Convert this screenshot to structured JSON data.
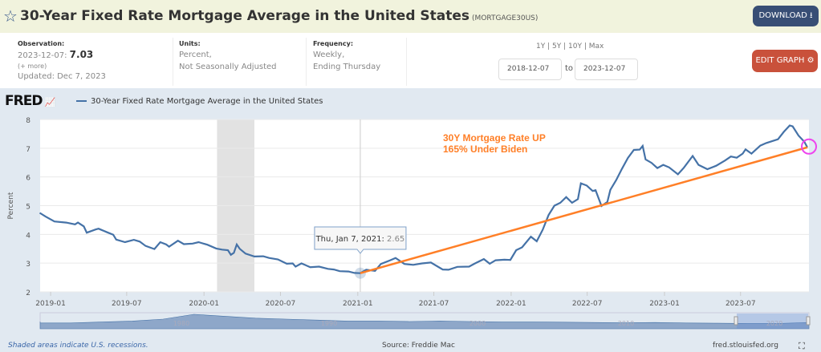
{
  "header": {
    "title": "30-Year Fixed Rate Mortgage Average in the United States",
    "series_id": "(MORTGAGE30US)",
    "download_label": "DOWNLOAD",
    "star_icon": "star-icon",
    "download_icon": "download-icon"
  },
  "info": {
    "observation_label": "Observation:",
    "observation_date": "2023-12-07:",
    "observation_value": "7.03",
    "more": "(+ more)",
    "updated": "Updated: Dec 7, 2023",
    "units_label": "Units:",
    "units_1": "Percent,",
    "units_2": "Not Seasonally Adjusted",
    "frequency_label": "Frequency:",
    "frequency_1": "Weekly,",
    "frequency_2": "Ending Thursday"
  },
  "controls": {
    "ranges": [
      "1Y",
      "5Y",
      "10Y",
      "Max"
    ],
    "start_date": "2018-12-07",
    "to_label": "to",
    "end_date": "2023-12-07",
    "edit_label": "EDIT GRAPH",
    "gear_icon": "gear-icon"
  },
  "brand": "FRED",
  "footer": {
    "recession_note": "Shaded areas indicate U.S. recessions.",
    "source": "Source: Freddie Mac",
    "site": "fred.stlouisfed.org",
    "fullscreen_icon": "fullscreen-icon"
  },
  "chart_data": {
    "type": "line",
    "ylabel": "Percent",
    "ylim": [
      2,
      8
    ],
    "xlim": [
      "2018-12-07",
      "2023-12-07"
    ],
    "grid": true,
    "legend_placement": "top-left",
    "yticks": [
      "2",
      "3",
      "4",
      "5",
      "6",
      "7",
      "8"
    ],
    "xticks": [
      "2019-01",
      "2019-07",
      "2020-01",
      "2020-07",
      "2021-01",
      "2021-07",
      "2022-01",
      "2022-07",
      "2023-01",
      "2023-07"
    ],
    "series": [
      {
        "name": "30-Year Fixed Rate Mortgage Average in the United States",
        "color": "#4572a7",
        "points": [
          [
            "2018-12-06",
            4.75
          ],
          [
            "2018-12-20",
            4.62
          ],
          [
            "2019-01-10",
            4.45
          ],
          [
            "2019-02-07",
            4.41
          ],
          [
            "2019-02-28",
            4.35
          ],
          [
            "2019-03-07",
            4.41
          ],
          [
            "2019-03-21",
            4.28
          ],
          [
            "2019-03-28",
            4.06
          ],
          [
            "2019-04-18",
            4.17
          ],
          [
            "2019-04-25",
            4.2
          ],
          [
            "2019-05-16",
            4.07
          ],
          [
            "2019-05-30",
            3.99
          ],
          [
            "2019-06-06",
            3.82
          ],
          [
            "2019-06-27",
            3.73
          ],
          [
            "2019-07-18",
            3.81
          ],
          [
            "2019-08-01",
            3.75
          ],
          [
            "2019-08-15",
            3.6
          ],
          [
            "2019-09-05",
            3.49
          ],
          [
            "2019-09-19",
            3.73
          ],
          [
            "2019-10-03",
            3.65
          ],
          [
            "2019-10-10",
            3.57
          ],
          [
            "2019-10-31",
            3.78
          ],
          [
            "2019-11-14",
            3.66
          ],
          [
            "2019-12-05",
            3.68
          ],
          [
            "2019-12-19",
            3.73
          ],
          [
            "2020-01-09",
            3.64
          ],
          [
            "2020-01-30",
            3.51
          ],
          [
            "2020-02-13",
            3.47
          ],
          [
            "2020-02-27",
            3.45
          ],
          [
            "2020-03-05",
            3.29
          ],
          [
            "2020-03-12",
            3.36
          ],
          [
            "2020-03-19",
            3.65
          ],
          [
            "2020-03-26",
            3.5
          ],
          [
            "2020-04-09",
            3.33
          ],
          [
            "2020-04-30",
            3.23
          ],
          [
            "2020-05-21",
            3.24
          ],
          [
            "2020-06-04",
            3.18
          ],
          [
            "2020-06-25",
            3.13
          ],
          [
            "2020-07-16",
            2.98
          ],
          [
            "2020-07-30",
            2.99
          ],
          [
            "2020-08-06",
            2.88
          ],
          [
            "2020-08-20",
            2.99
          ],
          [
            "2020-09-10",
            2.86
          ],
          [
            "2020-10-01",
            2.88
          ],
          [
            "2020-10-22",
            2.8
          ],
          [
            "2020-11-05",
            2.78
          ],
          [
            "2020-11-19",
            2.72
          ],
          [
            "2020-12-10",
            2.71
          ],
          [
            "2020-12-24",
            2.66
          ],
          [
            "2021-01-07",
            2.65
          ],
          [
            "2021-01-21",
            2.77
          ],
          [
            "2021-02-11",
            2.73
          ],
          [
            "2021-02-25",
            2.97
          ],
          [
            "2021-03-18",
            3.09
          ],
          [
            "2021-04-01",
            3.18
          ],
          [
            "2021-04-22",
            2.97
          ],
          [
            "2021-05-13",
            2.94
          ],
          [
            "2021-06-03",
            2.99
          ],
          [
            "2021-06-24",
            3.02
          ],
          [
            "2021-07-22",
            2.78
          ],
          [
            "2021-08-05",
            2.77
          ],
          [
            "2021-08-26",
            2.87
          ],
          [
            "2021-09-23",
            2.88
          ],
          [
            "2021-10-07",
            2.99
          ],
          [
            "2021-10-28",
            3.14
          ],
          [
            "2021-11-11",
            2.98
          ],
          [
            "2021-11-25",
            3.1
          ],
          [
            "2021-12-16",
            3.12
          ],
          [
            "2021-12-30",
            3.11
          ],
          [
            "2022-01-13",
            3.45
          ],
          [
            "2022-01-27",
            3.55
          ],
          [
            "2022-02-17",
            3.92
          ],
          [
            "2022-03-03",
            3.76
          ],
          [
            "2022-03-17",
            4.16
          ],
          [
            "2022-03-31",
            4.67
          ],
          [
            "2022-04-14",
            5.0
          ],
          [
            "2022-04-28",
            5.1
          ],
          [
            "2022-05-12",
            5.3
          ],
          [
            "2022-05-26",
            5.1
          ],
          [
            "2022-06-09",
            5.23
          ],
          [
            "2022-06-16",
            5.78
          ],
          [
            "2022-06-30",
            5.7
          ],
          [
            "2022-07-14",
            5.51
          ],
          [
            "2022-07-21",
            5.54
          ],
          [
            "2022-08-04",
            4.99
          ],
          [
            "2022-08-18",
            5.13
          ],
          [
            "2022-08-25",
            5.55
          ],
          [
            "2022-09-08",
            5.89
          ],
          [
            "2022-09-22",
            6.29
          ],
          [
            "2022-10-06",
            6.66
          ],
          [
            "2022-10-20",
            6.94
          ],
          [
            "2022-11-03",
            6.95
          ],
          [
            "2022-11-10",
            7.08
          ],
          [
            "2022-11-17",
            6.61
          ],
          [
            "2022-12-01",
            6.49
          ],
          [
            "2022-12-15",
            6.31
          ],
          [
            "2022-12-29",
            6.42
          ],
          [
            "2023-01-12",
            6.33
          ],
          [
            "2023-02-02",
            6.09
          ],
          [
            "2023-02-16",
            6.32
          ],
          [
            "2023-03-09",
            6.73
          ],
          [
            "2023-03-23",
            6.42
          ],
          [
            "2023-04-13",
            6.27
          ],
          [
            "2023-05-04",
            6.39
          ],
          [
            "2023-05-25",
            6.57
          ],
          [
            "2023-06-08",
            6.71
          ],
          [
            "2023-06-22",
            6.67
          ],
          [
            "2023-07-06",
            6.81
          ],
          [
            "2023-07-13",
            6.96
          ],
          [
            "2023-07-27",
            6.81
          ],
          [
            "2023-08-17",
            7.09
          ],
          [
            "2023-08-31",
            7.18
          ],
          [
            "2023-09-28",
            7.31
          ],
          [
            "2023-10-12",
            7.57
          ],
          [
            "2023-10-26",
            7.79
          ],
          [
            "2023-11-02",
            7.76
          ],
          [
            "2023-11-16",
            7.44
          ],
          [
            "2023-11-30",
            7.22
          ],
          [
            "2023-12-07",
            7.03
          ]
        ]
      }
    ],
    "recessions": [
      [
        "2020-02-01",
        "2020-04-30"
      ]
    ],
    "tooltip": {
      "date": "Thu, Jan 7, 2021:",
      "value": "2.65"
    },
    "annotation": {
      "line_1": "30Y Mortgage Rate UP",
      "line_2": "165% Under Biden",
      "color": "#ff7f27",
      "trend_from": [
        "2021-01-07",
        2.65
      ],
      "trend_to": [
        "2023-12-07",
        7.03
      ],
      "circle_color": "#ee44ee"
    },
    "navigator_labels": [
      "1980",
      "1990",
      "2000",
      "2010",
      "2020"
    ]
  }
}
